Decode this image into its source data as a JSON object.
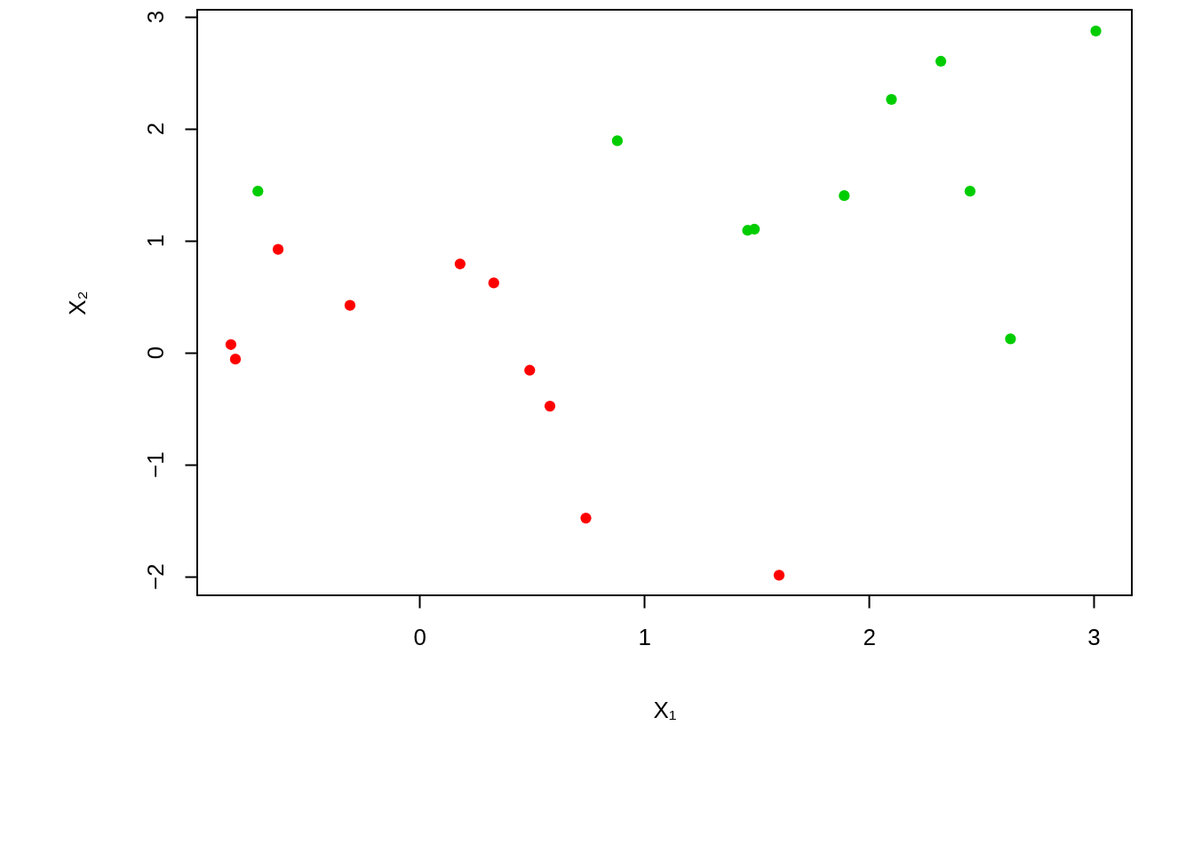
{
  "chart_data": {
    "type": "scatter",
    "xlabel": "X₁",
    "ylabel": "X₂",
    "xlim": [
      -0.99,
      3.17
    ],
    "ylim": [
      -2.17,
      3.06
    ],
    "xticks": [
      0,
      1,
      2,
      3
    ],
    "yticks": [
      -2,
      -1,
      0,
      1,
      2,
      3
    ],
    "grid": false,
    "marker": "circle",
    "series": [
      {
        "color": "#ff0000",
        "x": [
          -0.84,
          -0.82,
          -0.63,
          -0.31,
          0.18,
          0.33,
          0.49,
          0.58,
          0.74,
          1.6
        ],
        "values": [
          0.07,
          -0.06,
          0.92,
          0.42,
          0.79,
          0.62,
          -0.16,
          -0.48,
          -1.48,
          -1.99
        ]
      },
      {
        "color": "#00cd00",
        "x": [
          -0.72,
          0.88,
          1.46,
          1.49,
          1.89,
          2.1,
          2.32,
          2.45,
          2.63,
          3.01
        ],
        "values": [
          1.44,
          1.89,
          1.09,
          1.1,
          1.4,
          2.26,
          2.6,
          1.44,
          0.12,
          2.87
        ]
      }
    ]
  }
}
